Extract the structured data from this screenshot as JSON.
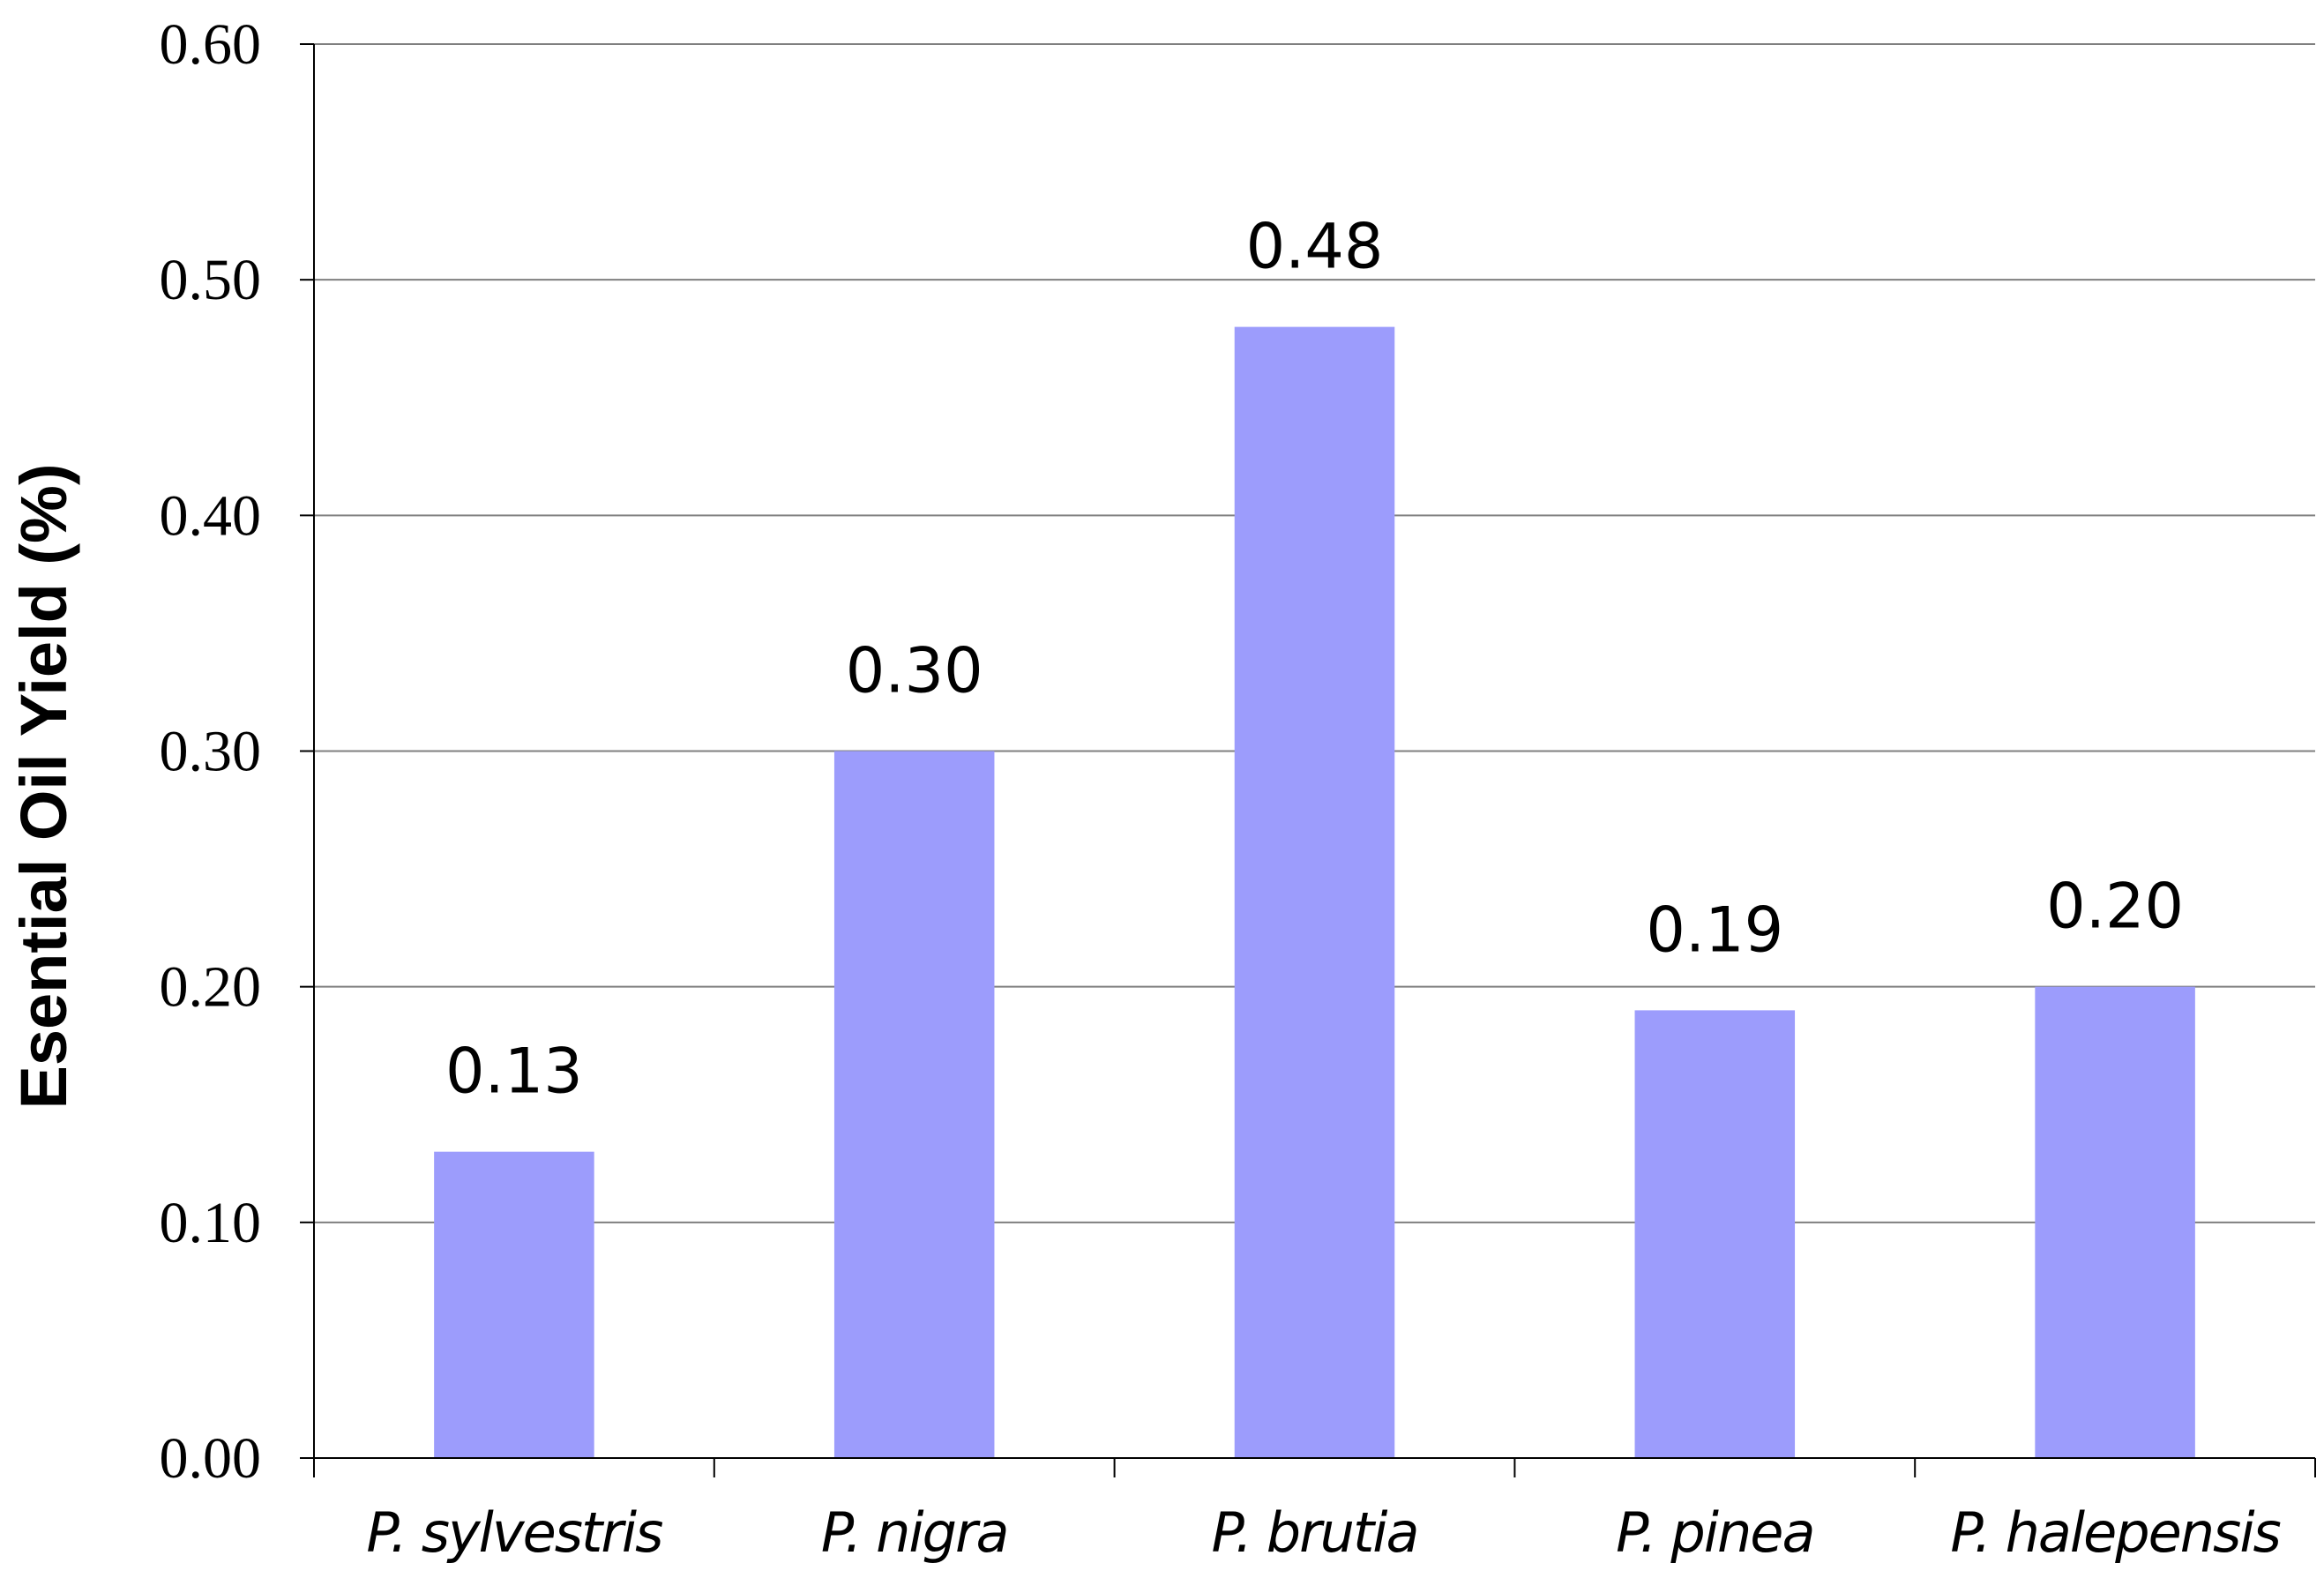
{
  "chart_data": {
    "type": "bar",
    "title": "",
    "xlabel": "",
    "ylabel": "Esential Oil Yield (%)",
    "categories": [
      "P. sylvestris",
      "P. nigra",
      "P. brutia",
      "P. pinea",
      "P. halepensis"
    ],
    "values": [
      0.13,
      0.3,
      0.48,
      0.19,
      0.2
    ],
    "data_labels": [
      "0.13",
      "0.30",
      "0.48",
      "0.19",
      "0.20"
    ],
    "ylim": [
      0,
      0.6
    ],
    "yticks": [
      0.0,
      0.1,
      0.2,
      0.3,
      0.4,
      0.5,
      0.6
    ],
    "ytick_labels": [
      "0.00",
      "0.10",
      "0.20",
      "0.30",
      "0.40",
      "0.50",
      "0.60"
    ],
    "grid": true,
    "legend": "none",
    "colors": {
      "bar": "#9c9cfc",
      "grid": "#7f7f7f",
      "axis": "#000000",
      "text": "#000000"
    }
  }
}
